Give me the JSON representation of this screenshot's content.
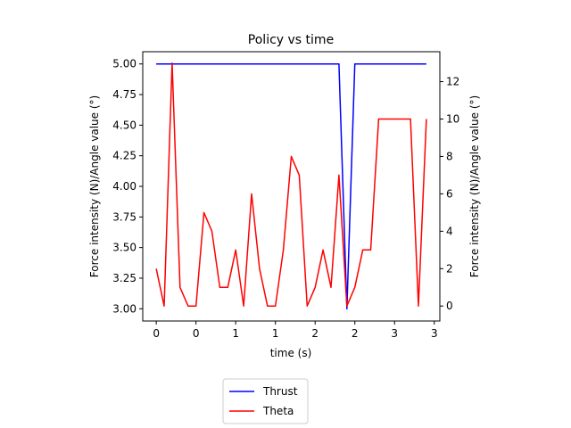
{
  "chart_data": {
    "type": "line",
    "title": "Policy vs time",
    "xlabel": "time (s)",
    "ylabel_left": "Force intensity (N)/Angle value (°)",
    "ylabel_right": "Force intensity (N)/Angle value (°)",
    "xlim": [
      -0.17,
      3.57
    ],
    "ylim_left": [
      2.9,
      5.1
    ],
    "ylim_right": [
      -0.8,
      13.6
    ],
    "x_tick_labels": [
      "0",
      "0",
      "1",
      "1",
      "2",
      "2",
      "3",
      "3"
    ],
    "y_left_ticks": [
      "3.00",
      "3.25",
      "3.50",
      "3.75",
      "4.00",
      "4.25",
      "4.50",
      "4.75",
      "5.00"
    ],
    "y_right_ticks": [
      "0",
      "2",
      "4",
      "6",
      "8",
      "10",
      "12"
    ],
    "grid": false,
    "legend_position": "below",
    "series": [
      {
        "name": "Thrust",
        "color": "#0000ff",
        "axis": "left",
        "x": [
          0,
          0.1,
          0.2,
          0.3,
          0.4,
          0.5,
          0.6,
          0.7,
          0.8,
          0.9,
          1.0,
          1.1,
          1.2,
          1.3,
          1.4,
          1.5,
          1.6,
          1.7,
          1.8,
          1.9,
          2.0,
          2.1,
          2.2,
          2.3,
          2.4,
          2.5,
          2.6,
          2.7,
          2.8,
          2.9,
          3.0,
          3.1,
          3.2,
          3.3,
          3.4
        ],
        "values": [
          5,
          5,
          5,
          5,
          5,
          5,
          5,
          5,
          5,
          5,
          5,
          5,
          5,
          5,
          5,
          5,
          5,
          5,
          5,
          5,
          5,
          5,
          5,
          5,
          3,
          5,
          5,
          5,
          5,
          5,
          5,
          5,
          5,
          5,
          5
        ]
      },
      {
        "name": "Theta",
        "color": "#ff0000",
        "axis": "right",
        "x": [
          0,
          0.1,
          0.2,
          0.3,
          0.4,
          0.5,
          0.6,
          0.7,
          0.8,
          0.9,
          1.0,
          1.1,
          1.2,
          1.3,
          1.4,
          1.5,
          1.6,
          1.7,
          1.8,
          1.9,
          2.0,
          2.1,
          2.2,
          2.3,
          2.4,
          2.5,
          2.6,
          2.7,
          2.8,
          2.9,
          3.0,
          3.1,
          3.2,
          3.3,
          3.4
        ],
        "values": [
          2,
          0,
          13,
          1,
          0,
          0,
          5,
          4,
          1,
          1,
          3,
          0,
          6,
          2,
          0,
          0,
          3,
          8,
          7,
          0,
          1,
          3,
          1,
          7,
          0,
          1,
          3,
          3,
          10,
          10,
          10,
          10,
          10,
          0,
          10
        ]
      }
    ]
  }
}
